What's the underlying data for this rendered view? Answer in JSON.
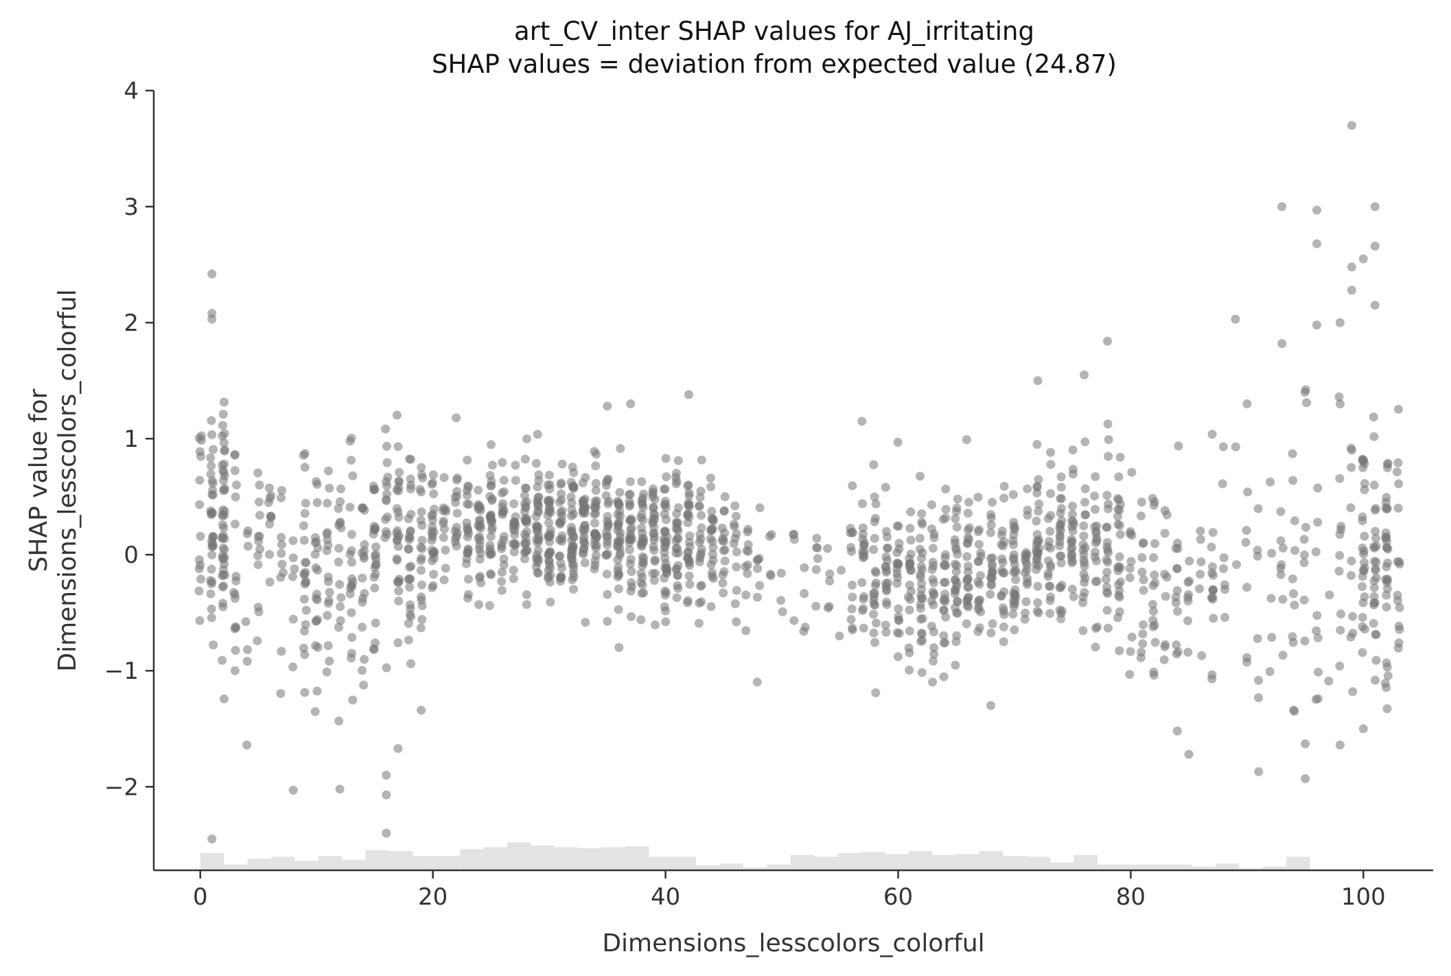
{
  "chart_data": {
    "type": "scatter",
    "title": "art_CV_inter SHAP values for AJ_irritating",
    "subtitle": "SHAP values = deviation from expected value (24.87)",
    "xlabel": "Dimensions_lesscolors_colorful",
    "ylabel_line1": "SHAP value for",
    "ylabel_line2": "Dimensions_lesscolors_colorful",
    "xlim": [
      -4,
      106
    ],
    "ylim": [
      -2.72,
      4.0
    ],
    "x_ticks": [
      0,
      20,
      40,
      60,
      80,
      100
    ],
    "x_tick_labels": [
      "0",
      "20",
      "40",
      "60",
      "80",
      "100"
    ],
    "y_ticks": [
      -2,
      -1,
      0,
      1,
      2,
      3,
      4
    ],
    "y_tick_labels": [
      "−2",
      "−1",
      "0",
      "1",
      "2",
      "3",
      "4"
    ],
    "grid": false,
    "point_color": "#777777",
    "histogram_color": "#e3e3e3",
    "density_profile": [
      {
        "x": 1,
        "center": 0.2,
        "spread": 0.55,
        "n": 95
      },
      {
        "x": 3,
        "center": -0.05,
        "spread": 0.5,
        "n": 18
      },
      {
        "x": 5,
        "center": -0.05,
        "spread": 0.5,
        "n": 30
      },
      {
        "x": 8,
        "center": -0.1,
        "spread": 0.5,
        "n": 35
      },
      {
        "x": 10,
        "center": -0.15,
        "spread": 0.5,
        "n": 30
      },
      {
        "x": 12,
        "center": -0.1,
        "spread": 0.55,
        "n": 40
      },
      {
        "x": 14,
        "center": -0.05,
        "spread": 0.5,
        "n": 30
      },
      {
        "x": 16,
        "center": 0.0,
        "spread": 0.45,
        "n": 50
      },
      {
        "x": 18,
        "center": 0.1,
        "spread": 0.4,
        "n": 55
      },
      {
        "x": 21,
        "center": 0.2,
        "spread": 0.3,
        "n": 55
      },
      {
        "x": 24,
        "center": 0.2,
        "spread": 0.3,
        "n": 70
      },
      {
        "x": 27,
        "center": 0.2,
        "spread": 0.3,
        "n": 80
      },
      {
        "x": 30,
        "center": 0.22,
        "spread": 0.3,
        "n": 100
      },
      {
        "x": 33,
        "center": 0.25,
        "spread": 0.3,
        "n": 95
      },
      {
        "x": 36,
        "center": 0.2,
        "spread": 0.3,
        "n": 90
      },
      {
        "x": 39,
        "center": 0.15,
        "spread": 0.3,
        "n": 90
      },
      {
        "x": 42,
        "center": 0.1,
        "spread": 0.3,
        "n": 70
      },
      {
        "x": 45,
        "center": 0.05,
        "spread": 0.3,
        "n": 45
      },
      {
        "x": 48,
        "center": -0.1,
        "spread": 0.3,
        "n": 18
      },
      {
        "x": 51,
        "center": -0.15,
        "spread": 0.3,
        "n": 12
      },
      {
        "x": 54,
        "center": -0.1,
        "spread": 0.3,
        "n": 12
      },
      {
        "x": 57,
        "center": -0.15,
        "spread": 0.4,
        "n": 60
      },
      {
        "x": 60,
        "center": -0.2,
        "spread": 0.35,
        "n": 65
      },
      {
        "x": 63,
        "center": -0.2,
        "spread": 0.35,
        "n": 70
      },
      {
        "x": 66,
        "center": -0.2,
        "spread": 0.35,
        "n": 70
      },
      {
        "x": 69,
        "center": -0.1,
        "spread": 0.35,
        "n": 65
      },
      {
        "x": 72,
        "center": 0.0,
        "spread": 0.35,
        "n": 65
      },
      {
        "x": 75,
        "center": 0.05,
        "spread": 0.4,
        "n": 70
      },
      {
        "x": 78,
        "center": 0.0,
        "spread": 0.45,
        "n": 55
      },
      {
        "x": 81,
        "center": -0.25,
        "spread": 0.4,
        "n": 40
      },
      {
        "x": 84,
        "center": -0.2,
        "spread": 0.4,
        "n": 30
      },
      {
        "x": 87,
        "center": -0.2,
        "spread": 0.45,
        "n": 25
      },
      {
        "x": 90,
        "center": -0.2,
        "spread": 0.45,
        "n": 18
      },
      {
        "x": 93,
        "center": 0.0,
        "spread": 0.6,
        "n": 22
      },
      {
        "x": 96,
        "center": -0.1,
        "spread": 0.7,
        "n": 22
      },
      {
        "x": 99,
        "center": 0.1,
        "spread": 0.8,
        "n": 35
      },
      {
        "x": 101,
        "center": 0.0,
        "spread": 0.7,
        "n": 80
      }
    ],
    "notable_points": [
      {
        "x": 1,
        "y": 2.42
      },
      {
        "x": 1,
        "y": 2.08
      },
      {
        "x": 1,
        "y": 2.03
      },
      {
        "x": 1,
        "y": -2.45
      },
      {
        "x": 16,
        "y": -2.4
      },
      {
        "x": 16,
        "y": -2.07
      },
      {
        "x": 16,
        "y": -1.9
      },
      {
        "x": 17,
        "y": -1.67
      },
      {
        "x": 8,
        "y": -2.03
      },
      {
        "x": 12,
        "y": -2.02
      },
      {
        "x": 99,
        "y": 3.7
      },
      {
        "x": 93,
        "y": 3.0
      },
      {
        "x": 101,
        "y": 3.0
      },
      {
        "x": 96,
        "y": 2.97
      },
      {
        "x": 96,
        "y": 2.68
      },
      {
        "x": 101,
        "y": 2.66
      },
      {
        "x": 100,
        "y": 2.55
      },
      {
        "x": 99,
        "y": 2.48
      },
      {
        "x": 99,
        "y": 2.28
      },
      {
        "x": 101,
        "y": 2.15
      },
      {
        "x": 89,
        "y": 2.03
      },
      {
        "x": 98,
        "y": 2.0
      },
      {
        "x": 96,
        "y": 1.98
      },
      {
        "x": 78,
        "y": 1.84
      },
      {
        "x": 93,
        "y": 1.82
      },
      {
        "x": 76,
        "y": 1.55
      },
      {
        "x": 72,
        "y": 1.5
      },
      {
        "x": 42,
        "y": 1.38
      },
      {
        "x": 37,
        "y": 1.3
      },
      {
        "x": 90,
        "y": 1.3
      },
      {
        "x": 35,
        "y": 1.28
      },
      {
        "x": 22,
        "y": 1.18
      },
      {
        "x": 85,
        "y": -1.72
      },
      {
        "x": 91,
        "y": -1.87
      },
      {
        "x": 95,
        "y": -1.93
      },
      {
        "x": 95,
        "y": -1.63
      },
      {
        "x": 98,
        "y": -1.64
      },
      {
        "x": 84,
        "y": -1.52
      },
      {
        "x": 100,
        "y": -1.5
      },
      {
        "x": 4,
        "y": -1.64
      },
      {
        "x": 19,
        "y": -1.34
      },
      {
        "x": 36,
        "y": -0.8
      }
    ],
    "histogram": {
      "bin_edges_start": 0,
      "bin_width": 2.03,
      "counts": [
        18,
        6,
        12,
        14,
        10,
        15,
        11,
        21,
        20,
        15,
        15,
        22,
        24,
        29,
        26,
        24,
        23,
        24,
        25,
        14,
        14,
        5,
        7,
        3,
        6,
        16,
        14,
        18,
        19,
        17,
        20,
        16,
        17,
        20,
        15,
        14,
        8,
        16,
        6,
        6,
        6,
        6,
        4,
        7,
        2,
        4,
        14
      ]
    }
  }
}
